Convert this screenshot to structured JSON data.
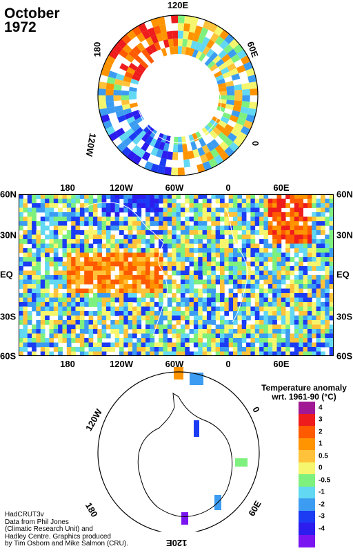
{
  "title": {
    "month": "October",
    "year": "1972"
  },
  "north_map": {
    "labels": {
      "top": "120E",
      "right": "60E",
      "bottom_right": "0",
      "left": "180",
      "bottom_left": "120W"
    }
  },
  "world_map": {
    "lon_labels": [
      "180",
      "120W",
      "60W",
      "0",
      "60E"
    ],
    "lat_labels": [
      "60N",
      "30N",
      "EQ",
      "30S",
      "60S"
    ]
  },
  "south_map": {
    "labels": {
      "top_left": "120W",
      "top_right": "0",
      "bottom_left": "180",
      "bottom_right": "60E",
      "bottom": "120E"
    }
  },
  "legend": {
    "title_line1": "Temperature anomaly",
    "title_line2": "wrt. 1961-90  (°C)",
    "bins": [
      {
        "label": "4",
        "color": "#a01894"
      },
      {
        "label": "3",
        "color": "#ee1c1c"
      },
      {
        "label": "2",
        "color": "#ff5a00"
      },
      {
        "label": "1",
        "color": "#ff9400"
      },
      {
        "label": "0.5",
        "color": "#ffc23a"
      },
      {
        "label": "0",
        "color": "#f6f66e"
      },
      {
        "label": "-0.5",
        "color": "#7ef07e"
      },
      {
        "label": "-1",
        "color": "#62d8f2"
      },
      {
        "label": "-2",
        "color": "#3c9cf2"
      },
      {
        "label": "-3",
        "color": "#1c3cf4"
      },
      {
        "label": "-4",
        "color": "#2c1cee"
      },
      {
        "label": "",
        "color": "#7a14f0"
      }
    ]
  },
  "credits": [
    "HadCRUT3v",
    "Data from Phil Jones",
    "(Climatic Research Unit) and",
    "Hadley Centre.  Graphics produced",
    "by Tim Osborn and Mike Salmon (CRU)."
  ]
}
